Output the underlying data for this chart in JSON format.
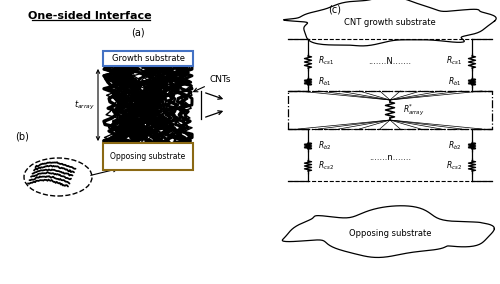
{
  "title": "One-sided Interface",
  "label_a": "(a)",
  "label_b": "(b)",
  "label_c": "(c)",
  "growth_substrate_label": "Growth substrate",
  "opposing_substrate_label": "Opposing substrate",
  "cnt_label": "CNTs",
  "cnt_growth_substrate": "CNT growth substrate",
  "opposing_substrate_c": "Opposing substrate",
  "Rcs1_label": "$R_{cs1}$",
  "Rcs2_label": "$R_{cs2}$",
  "Rb1_label": "$R_{b1}$",
  "Rb2_label": "$R_{b2}$",
  "Rarray_label": "$R^{*}_{array}$",
  "N_label": ".......N.......",
  "n_label": ".......n.......",
  "bg_color": "#ffffff",
  "line_color": "#000000",
  "blue_color": "#4472C4",
  "gold_color": "#8B6914"
}
